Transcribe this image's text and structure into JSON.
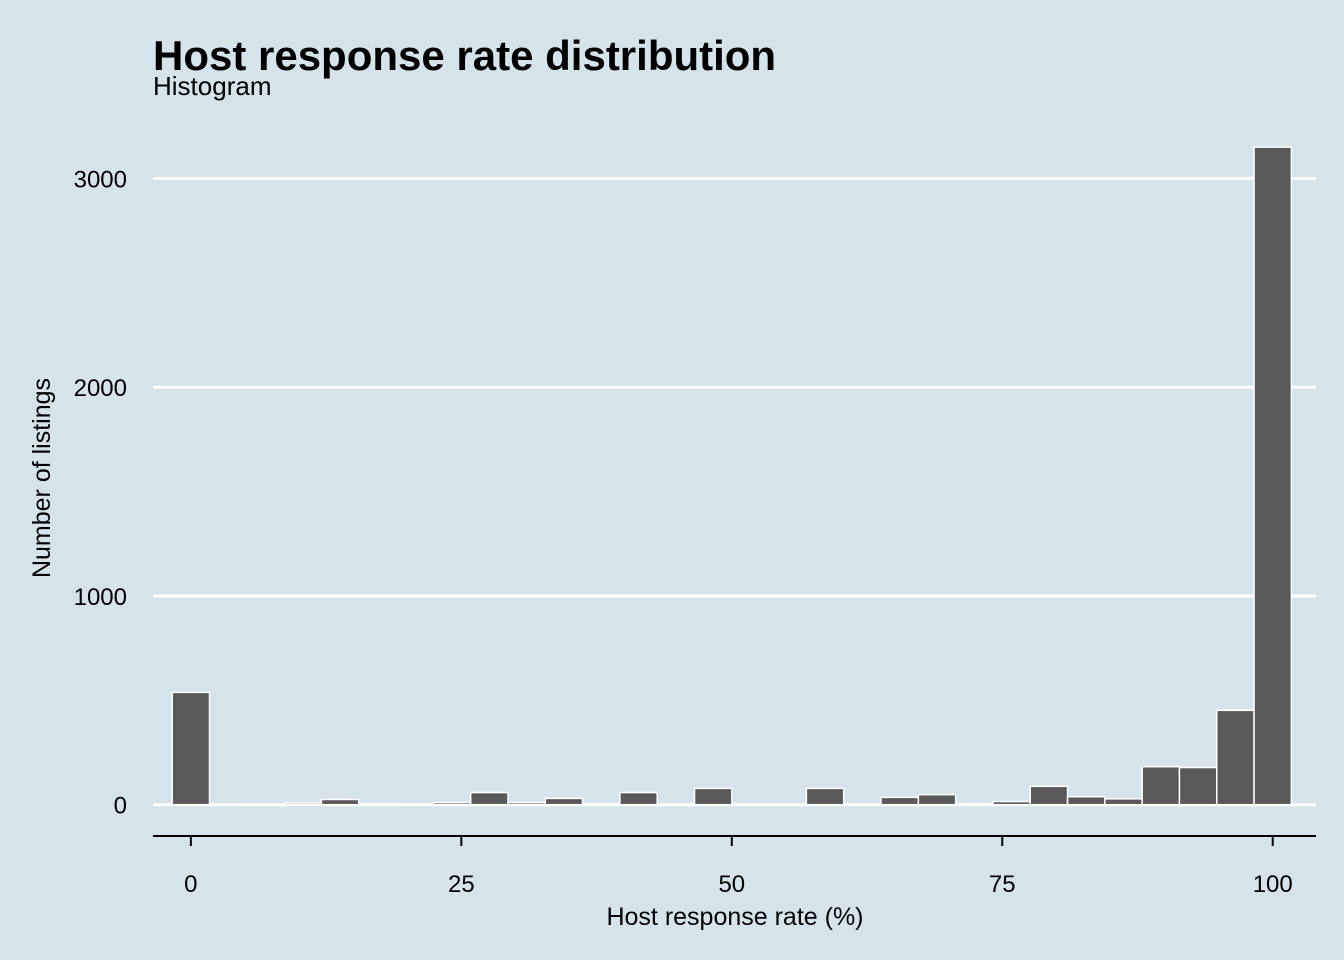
{
  "chart_data": {
    "type": "bar",
    "title": "Host response rate distribution",
    "subtitle": "Histogram",
    "xlabel": "Host response rate (%)",
    "ylabel": "Number of listings",
    "xlim": [
      -3.5,
      104
    ],
    "ylim": [
      -150,
      3280
    ],
    "x_ticks": [
      0,
      25,
      50,
      75,
      100
    ],
    "y_ticks": [
      0,
      1000,
      2000,
      3000
    ],
    "grid": "horizontal major lines only",
    "bin_width": 3.448,
    "bins": [
      {
        "x": 0.0,
        "count": 538
      },
      {
        "x": 3.45,
        "count": 2
      },
      {
        "x": 6.9,
        "count": 3
      },
      {
        "x": 10.34,
        "count": 8
      },
      {
        "x": 13.79,
        "count": 25
      },
      {
        "x": 17.24,
        "count": 5
      },
      {
        "x": 20.69,
        "count": 4
      },
      {
        "x": 24.14,
        "count": 10
      },
      {
        "x": 27.59,
        "count": 58
      },
      {
        "x": 31.03,
        "count": 10
      },
      {
        "x": 34.48,
        "count": 30
      },
      {
        "x": 37.93,
        "count": 5
      },
      {
        "x": 41.38,
        "count": 58
      },
      {
        "x": 44.83,
        "count": 3
      },
      {
        "x": 48.28,
        "count": 78
      },
      {
        "x": 51.72,
        "count": 3
      },
      {
        "x": 55.17,
        "count": 3
      },
      {
        "x": 58.62,
        "count": 78
      },
      {
        "x": 62.07,
        "count": 3
      },
      {
        "x": 65.52,
        "count": 35
      },
      {
        "x": 68.97,
        "count": 48
      },
      {
        "x": 72.41,
        "count": 5
      },
      {
        "x": 75.86,
        "count": 15
      },
      {
        "x": 79.31,
        "count": 88
      },
      {
        "x": 82.76,
        "count": 38
      },
      {
        "x": 86.21,
        "count": 28
      },
      {
        "x": 89.66,
        "count": 182
      },
      {
        "x": 93.1,
        "count": 178
      },
      {
        "x": 96.55,
        "count": 452
      },
      {
        "x": 100.0,
        "count": 3150
      }
    ]
  },
  "colors": {
    "background": "#d5e4eb",
    "bar_fill": "#595959",
    "bar_stroke": "#ffffff",
    "grid": "#ffffff",
    "axis": "#000000"
  }
}
